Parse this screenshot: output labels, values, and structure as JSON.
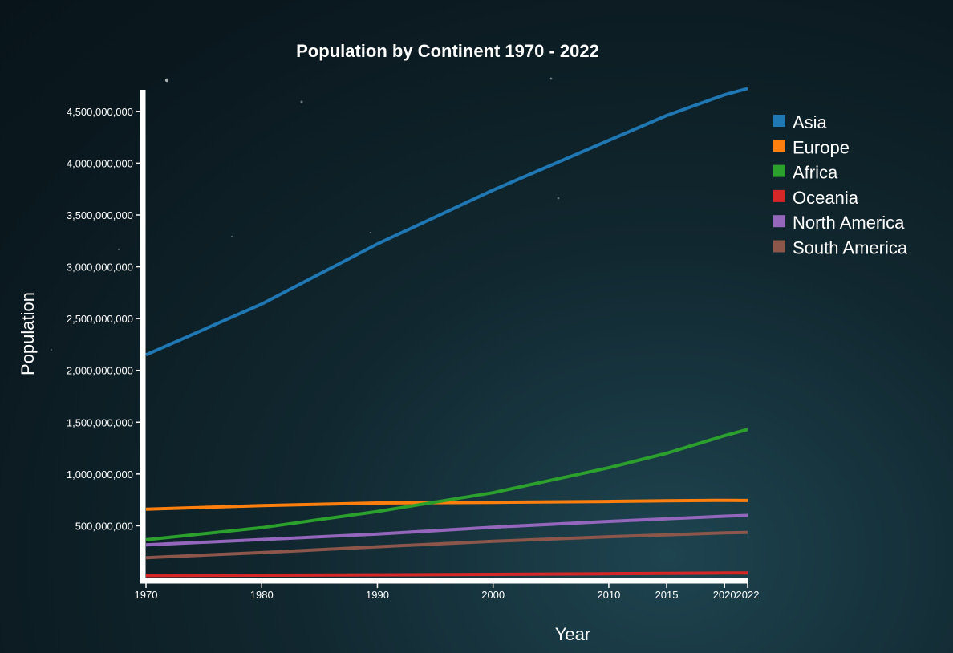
{
  "chart_data": {
    "type": "line",
    "title": "Population by Continent 1970 - 2022",
    "xlabel": "Year",
    "ylabel": "Population",
    "x": [
      1970,
      1980,
      1990,
      2000,
      2010,
      2015,
      2020,
      2022
    ],
    "x_tick_labels": [
      "1970",
      "1980",
      "1990",
      "2000",
      "2010",
      "2015",
      "2020",
      "2022"
    ],
    "ylim": [
      0,
      4700000000
    ],
    "y_ticks": [
      500000000,
      1000000000,
      1500000000,
      2000000000,
      2500000000,
      3000000000,
      3500000000,
      4000000000,
      4500000000
    ],
    "y_tick_labels": [
      "500,000,000",
      "1,000,000,000",
      "1,500,000,000",
      "2,000,000,000",
      "2,500,000,000",
      "3,000,000,000",
      "3,500,000,000",
      "4,000,000,000",
      "4,500,000,000"
    ],
    "grid": false,
    "legend_position": "top-right",
    "series": [
      {
        "name": "Asia",
        "color": "#1f77b4",
        "values": [
          2150000000,
          2640000000,
          3220000000,
          3740000000,
          4220000000,
          4460000000,
          4660000000,
          4720000000
        ]
      },
      {
        "name": "Europe",
        "color": "#ff7f0e",
        "values": [
          660000000,
          695000000,
          720000000,
          726000000,
          735000000,
          742000000,
          746000000,
          744000000
        ]
      },
      {
        "name": "Africa",
        "color": "#2ca02c",
        "values": [
          365000000,
          482000000,
          638000000,
          819000000,
          1060000000,
          1200000000,
          1370000000,
          1430000000
        ]
      },
      {
        "name": "Oceania",
        "color": "#d62728",
        "values": [
          19700000,
          22900000,
          26700000,
          31200000,
          37100000,
          40400000,
          43900000,
          45000000
        ]
      },
      {
        "name": "North America",
        "color": "#9467bd",
        "values": [
          315000000,
          367000000,
          420000000,
          486000000,
          542000000,
          567000000,
          592000000,
          600000000
        ]
      },
      {
        "name": "South America",
        "color": "#8c564b",
        "values": [
          192000000,
          241000000,
          297000000,
          350000000,
          394000000,
          412000000,
          431000000,
          436000000
        ]
      }
    ]
  }
}
